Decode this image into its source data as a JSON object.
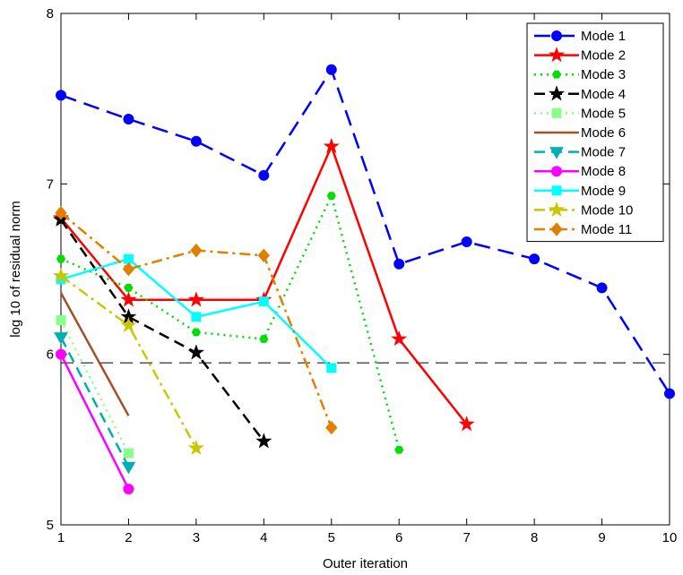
{
  "chart_data": {
    "type": "line",
    "title": "",
    "xlabel": "Outer iteration",
    "ylabel": "log 10 of residual norm",
    "xlim": [
      1,
      10
    ],
    "ylim": [
      5,
      8
    ],
    "xticks": [
      "1",
      "2",
      "3",
      "4",
      "5",
      "6",
      "7",
      "8",
      "9",
      "10"
    ],
    "yticks": [
      "5",
      "6",
      "7",
      "8"
    ],
    "legend_position": "top-right",
    "grid": false,
    "reference_line": {
      "y": 5.95,
      "style": "dashed",
      "color": "#000000"
    },
    "series": [
      {
        "name": "Mode 1",
        "color": "#0000ff",
        "dash": "18,9",
        "marker": "circle",
        "x": [
          1,
          2,
          3,
          4,
          5,
          6,
          7,
          8,
          9,
          10
        ],
        "y": [
          7.52,
          7.38,
          7.25,
          7.05,
          7.67,
          6.53,
          6.66,
          6.56,
          6.39,
          5.77
        ]
      },
      {
        "name": "Mode 2",
        "color": "#ff0000",
        "dash": "",
        "marker": "star",
        "x": [
          1,
          2,
          3,
          4,
          5,
          6,
          7
        ],
        "y": [
          6.8,
          6.32,
          6.32,
          6.32,
          7.22,
          6.09,
          5.59
        ]
      },
      {
        "name": "Mode 3",
        "color": "#00dd00",
        "dash": "2,5",
        "marker": "hexagon",
        "x": [
          1,
          2,
          3,
          4,
          5,
          6
        ],
        "y": [
          6.56,
          6.39,
          6.13,
          6.09,
          6.93,
          5.44
        ]
      },
      {
        "name": "Mode 4",
        "color": "#000000",
        "dash": "12,7",
        "marker": "star",
        "x": [
          1,
          2,
          3,
          4
        ],
        "y": [
          6.79,
          6.22,
          6.01,
          5.49
        ]
      },
      {
        "name": "Mode 5",
        "color": "#88ff88",
        "dash": "2,5",
        "marker": "square",
        "x": [
          1,
          2
        ],
        "y": [
          6.2,
          5.42
        ]
      },
      {
        "name": "Mode 6",
        "color": "#a0522d",
        "dash": "",
        "marker": "none",
        "x": [
          1,
          2
        ],
        "y": [
          6.36,
          5.64
        ]
      },
      {
        "name": "Mode 7",
        "color": "#00b0b0",
        "dash": "12,7",
        "marker": "triangle",
        "x": [
          1,
          2
        ],
        "y": [
          6.1,
          5.34
        ]
      },
      {
        "name": "Mode 8",
        "color": "#ff00ff",
        "dash": "",
        "marker": "circle",
        "x": [
          1,
          2
        ],
        "y": [
          6.0,
          5.21
        ]
      },
      {
        "name": "Mode 9",
        "color": "#00ffff",
        "dash": "",
        "marker": "square",
        "x": [
          1,
          2,
          3,
          4,
          5
        ],
        "y": [
          6.44,
          6.56,
          6.22,
          6.31,
          5.92
        ]
      },
      {
        "name": "Mode 10",
        "color": "#c8c800",
        "dash": "12,5,3,5",
        "marker": "star",
        "x": [
          1,
          2,
          3
        ],
        "y": [
          6.46,
          6.17,
          5.45
        ]
      },
      {
        "name": "Mode 11",
        "color": "#e08000",
        "dash": "12,5,3,5",
        "marker": "diamond",
        "x": [
          1,
          2,
          3,
          4,
          5
        ],
        "y": [
          6.83,
          6.5,
          6.61,
          6.58,
          5.57
        ]
      }
    ]
  }
}
